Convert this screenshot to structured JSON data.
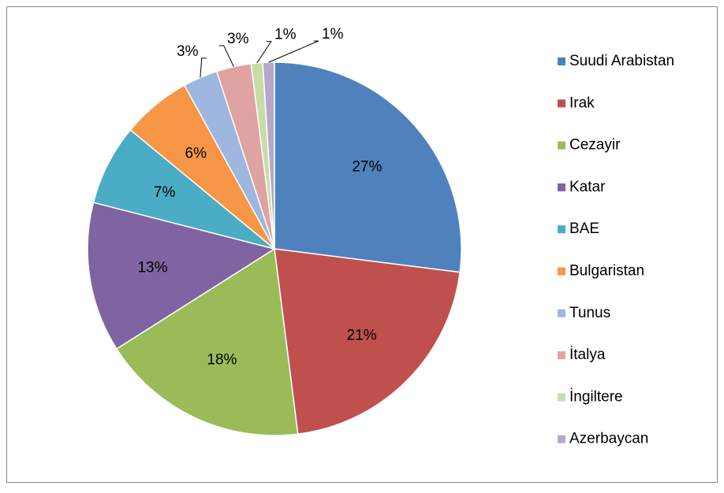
{
  "chart_data": {
    "type": "pie",
    "categories": [
      "Suudi Arabistan",
      "Irak",
      "Cezayir",
      "Katar",
      "BAE",
      "Bulgaristan",
      "Tunus",
      "İtalya",
      "İngiltere",
      "Azerbaycan"
    ],
    "values": [
      27,
      21,
      18,
      13,
      7,
      6,
      3,
      3,
      1,
      1
    ],
    "value_labels": [
      "27%",
      "21%",
      "18%",
      "13%",
      "7%",
      "6%",
      "3%",
      "3%",
      "1%",
      "1%"
    ],
    "colors": [
      "#4f81bd",
      "#c0504d",
      "#9bbb59",
      "#8064a2",
      "#4bacc6",
      "#f79646",
      "#9fb6de",
      "#dfa3a1",
      "#c8dcaa",
      "#b6a7cb"
    ],
    "legend": "right"
  }
}
